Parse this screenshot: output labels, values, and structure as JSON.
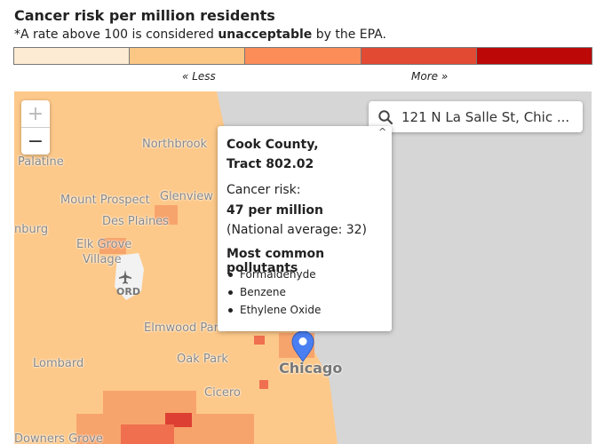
{
  "title": "Cancer risk per million residents",
  "subtitle": {
    "prefix": "*A rate above 100 is considered ",
    "emphasis": "unacceptable",
    "suffix": " by the EPA."
  },
  "legend": {
    "colors": [
      "#fdebd3",
      "#fcc785",
      "#fc8d59",
      "#e34a33",
      "#bd0808"
    ],
    "less_label": "« Less",
    "more_label": "More »"
  },
  "map": {
    "colors": {
      "water": "#d6d6d6",
      "base": "#fdc98a",
      "mid": "#f7a46c",
      "high": "#ef6f4e",
      "higher": "#de3f33",
      "airport": "#f2f2f2",
      "marker": "#4a7ff2"
    },
    "zoom_in": "+",
    "zoom_out": "−",
    "search": {
      "icon": "search-icon",
      "value": "121 N La Salle St, Chic ..."
    },
    "place_labels": {
      "northbrook": "Northbrook",
      "palatine": "Palatine",
      "mount_prospect": "Mount Prospect",
      "glenview": "Glenview",
      "des_plaines": "Des Plaines",
      "burg": "nburg",
      "elk_grove": "Elk Grove",
      "village": "Village",
      "ord": "ORD",
      "elmwood": "Elmwood Park",
      "oak_park": "Oak Park",
      "lombard": "Lombard",
      "chicago": "Chicago",
      "cicero": "Cicero",
      "downers": "Downers Grove"
    },
    "popup": {
      "close": "^",
      "county": "Cook County,",
      "tract": "Tract 802.02",
      "risk_label": "Cancer risk:",
      "risk_value": "47 per million",
      "national_avg": "(National average: 32)",
      "pollutants_title": "Most common pollutants",
      "pollutants": [
        "Formaldehyde",
        "Benzene",
        "Ethylene Oxide"
      ]
    }
  }
}
